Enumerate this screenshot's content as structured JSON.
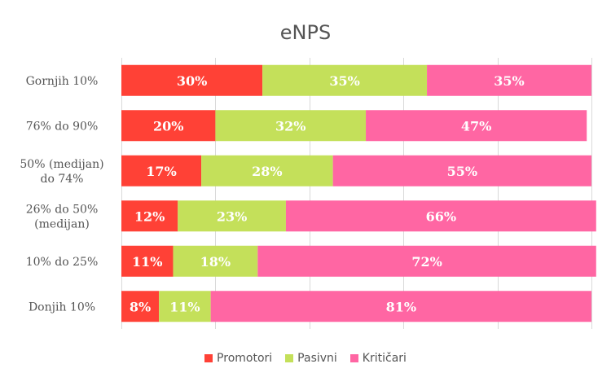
{
  "chart_data": {
    "type": "bar",
    "orientation": "horizontal",
    "stacked": true,
    "title": "eNPS",
    "categories": [
      "Gornjih 10%",
      "76% do 90%",
      "50% (medijan) do 74%",
      "26% do 50% (medijan)",
      "10% do 25%",
      "Donjih 10%"
    ],
    "category_lines": [
      [
        "Gornjih 10%"
      ],
      [
        "76% do 90%"
      ],
      [
        "50% (medijan)",
        "do 74%"
      ],
      [
        "26% do 50%",
        "(medijan)"
      ],
      [
        "10% do 25%"
      ],
      [
        "Donjih 10%"
      ]
    ],
    "series": [
      {
        "name": "Promotori",
        "color": "#ff4136",
        "values": [
          30,
          20,
          17,
          12,
          11,
          8
        ]
      },
      {
        "name": "Pasivni",
        "color": "#c4e05a",
        "values": [
          35,
          32,
          28,
          23,
          18,
          11
        ]
      },
      {
        "name": "Kritičari",
        "color": "#ff66a3",
        "values": [
          35,
          47,
          55,
          66,
          72,
          81
        ]
      }
    ],
    "xlim": [
      0,
      100
    ],
    "grid": true,
    "legend_position": "bottom",
    "label_suffix": "%"
  }
}
